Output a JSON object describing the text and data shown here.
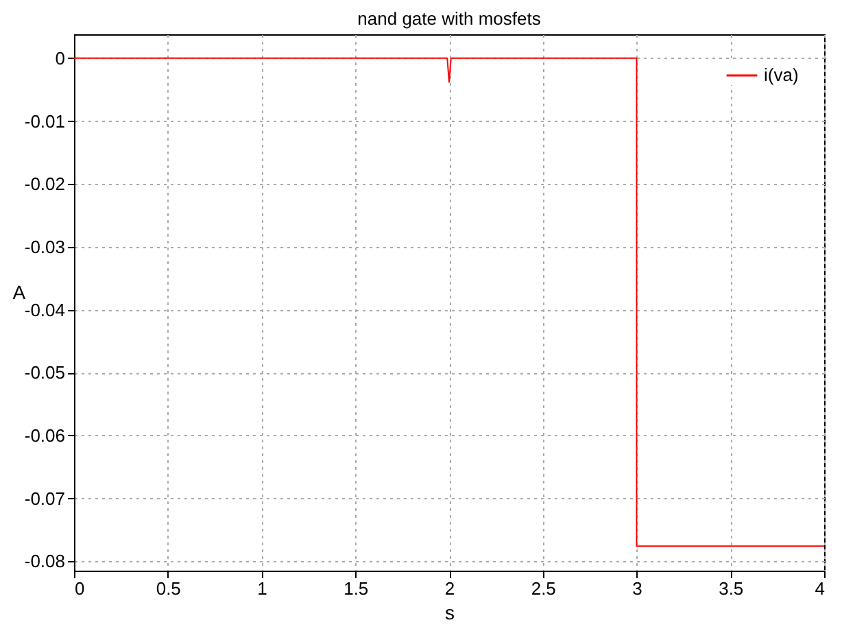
{
  "chart_data": {
    "type": "line",
    "title": "nand gate with mosfets",
    "xlabel": "s",
    "ylabel": "A",
    "xlim": [
      0,
      4
    ],
    "xticks": [
      0,
      0.5,
      1,
      1.5,
      2,
      2.5,
      3,
      3.5,
      4
    ],
    "ylim": [
      -0.0815,
      0.0038
    ],
    "yticks": [
      0,
      -0.01,
      -0.02,
      -0.03,
      -0.04,
      -0.05,
      -0.06,
      -0.07,
      -0.08
    ],
    "grid": true,
    "legend": "top right",
    "marker": "none",
    "line_style": "solid",
    "series": [
      {
        "name": "i(va)",
        "color": "#ff0000",
        "x": [
          0,
          1.99,
          2,
          2.01,
          3,
          3,
          4
        ],
        "values": [
          0,
          0,
          -0.0038,
          0,
          0,
          -0.0776,
          -0.0776
        ]
      }
    ]
  }
}
